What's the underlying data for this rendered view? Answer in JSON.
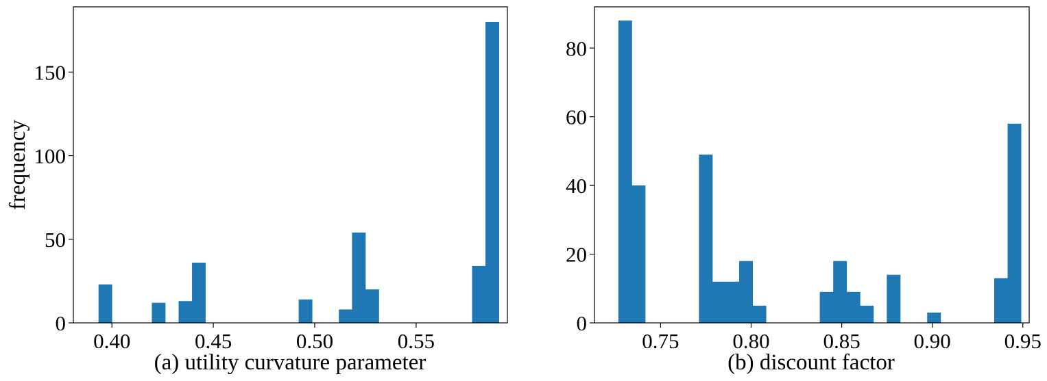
{
  "chart_data": [
    {
      "type": "bar",
      "xlabel": "(a) utility curvature parameter",
      "ylabel": "frequency",
      "xlim": [
        0.381,
        0.595
      ],
      "ylim": [
        0,
        189
      ],
      "xticks": [
        "0.40",
        "0.45",
        "0.50",
        "0.55"
      ],
      "yticks": [
        "0",
        "50",
        "100",
        "150"
      ],
      "bar_color": "#1f77b4",
      "bin_width": 0.0066,
      "bins": [
        {
          "x": 0.3934,
          "value": 23
        },
        {
          "x": 0.4197,
          "value": 12
        },
        {
          "x": 0.4329,
          "value": 13
        },
        {
          "x": 0.4395,
          "value": 36
        },
        {
          "x": 0.4921,
          "value": 14
        },
        {
          "x": 0.5119,
          "value": 8
        },
        {
          "x": 0.5184,
          "value": 54
        },
        {
          "x": 0.525,
          "value": 20
        },
        {
          "x": 0.5776,
          "value": 34
        },
        {
          "x": 0.5842,
          "value": 180
        }
      ]
    },
    {
      "type": "bar",
      "xlabel": "(b) discount factor",
      "ylabel": "",
      "xlim": [
        0.7135,
        0.9535
      ],
      "ylim": [
        0,
        92
      ],
      "xticks": [
        "0.75",
        "0.80",
        "0.85",
        "0.90",
        "0.95"
      ],
      "yticks": [
        "0",
        "20",
        "40",
        "60",
        "80"
      ],
      "bar_color": "#1f77b4",
      "bin_width": 0.0074,
      "bins": [
        {
          "x": 0.7267,
          "value": 88
        },
        {
          "x": 0.7341,
          "value": 40
        },
        {
          "x": 0.7712,
          "value": 49
        },
        {
          "x": 0.7786,
          "value": 12
        },
        {
          "x": 0.786,
          "value": 12
        },
        {
          "x": 0.7934,
          "value": 18
        },
        {
          "x": 0.8008,
          "value": 5
        },
        {
          "x": 0.8379,
          "value": 9
        },
        {
          "x": 0.8453,
          "value": 18
        },
        {
          "x": 0.8527,
          "value": 9
        },
        {
          "x": 0.8601,
          "value": 5
        },
        {
          "x": 0.8749,
          "value": 14
        },
        {
          "x": 0.8972,
          "value": 3
        },
        {
          "x": 0.9342,
          "value": 13
        },
        {
          "x": 0.9416,
          "value": 58
        }
      ]
    }
  ]
}
